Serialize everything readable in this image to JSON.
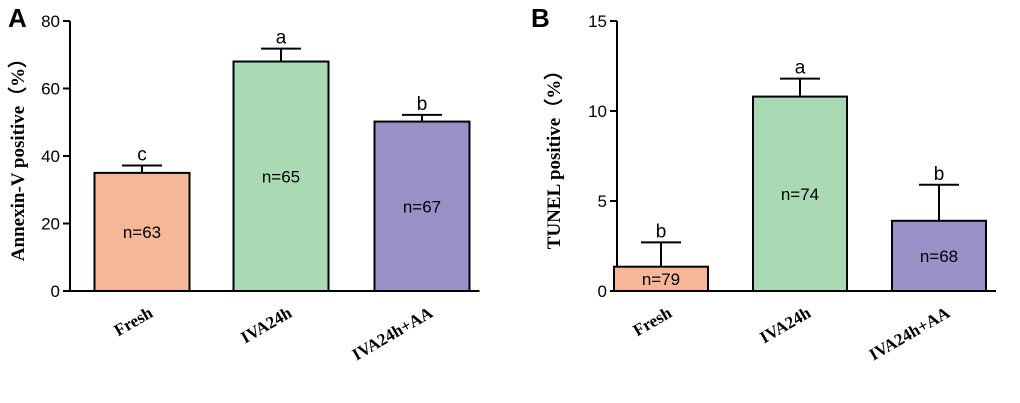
{
  "chart_data": [
    {
      "type": "bar",
      "panel": "A",
      "ylabel": "Annexin-V positive（%）",
      "xlabel": "",
      "ylim": [
        0,
        80
      ],
      "yticks": [
        0,
        20,
        40,
        60,
        80
      ],
      "categories": [
        "Fresh",
        "IVA24h",
        "IVA24h+AA"
      ],
      "values": [
        35,
        68,
        50.2
      ],
      "errors": [
        2.2,
        3.8,
        2.0
      ],
      "n_labels": [
        "n=63",
        "n=65",
        "n=67"
      ],
      "significance": [
        "c",
        "a",
        "b"
      ],
      "colors": [
        "#f6b798",
        "#a9dab4",
        "#9a8fc6"
      ]
    },
    {
      "type": "bar",
      "panel": "B",
      "ylabel": "TUNEL positive（%）",
      "xlabel": "",
      "ylim": [
        0,
        15
      ],
      "yticks": [
        0,
        5,
        10,
        15
      ],
      "categories": [
        "Fresh",
        "IVA24h",
        "IVA24h+AA"
      ],
      "values": [
        1.35,
        10.8,
        3.9
      ],
      "errors": [
        1.35,
        1.0,
        2.0
      ],
      "n_labels": [
        "n=79",
        "n=74",
        "n=68"
      ],
      "significance": [
        "b",
        "a",
        "b"
      ],
      "colors": [
        "#f6b798",
        "#a9dab4",
        "#9a8fc6"
      ]
    }
  ]
}
